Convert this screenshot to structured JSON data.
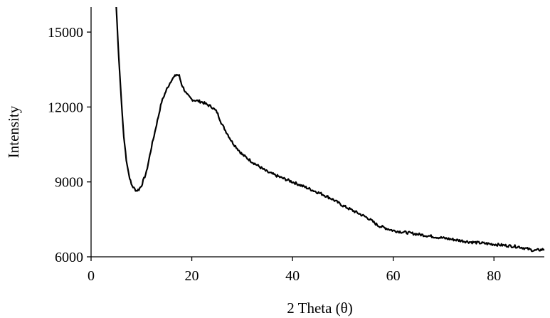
{
  "chart_data": {
    "type": "line",
    "title": "",
    "xlabel": "2 Theta (θ)",
    "ylabel": "Intensity",
    "xlim": [
      0,
      90
    ],
    "ylim": [
      6000,
      16000
    ],
    "x_ticks": [
      0,
      20,
      40,
      60,
      80
    ],
    "y_ticks": [
      6000,
      9000,
      12000,
      15000
    ],
    "grid": false,
    "legend": "none",
    "line_color": "#000000",
    "series": [
      {
        "x": [
          5.0,
          5.5,
          6.0,
          6.5,
          7.0,
          7.5,
          8.0,
          8.5,
          9.0,
          9.5,
          10.0,
          11.0,
          12.0,
          13.0,
          14.0,
          15.0,
          16.0,
          17.0,
          17.5,
          18.0,
          19.0,
          20.0,
          22.0,
          24.0,
          25.0,
          26.0,
          28.0,
          30.0,
          32.0,
          35.0,
          38.0,
          40.0,
          43.0,
          46.0,
          48.0,
          50.0,
          52.0,
          55.0,
          57.0,
          60.0,
          65.0,
          70.0,
          75.0,
          80.0,
          85.0,
          88.0,
          90.0
        ],
        "y": [
          16000,
          14000,
          12300,
          10800,
          9900,
          9300,
          8900,
          8750,
          8650,
          8700,
          8850,
          9400,
          10400,
          11300,
          12200,
          12700,
          13100,
          13300,
          13250,
          12900,
          12500,
          12300,
          12200,
          12000,
          11800,
          11300,
          10600,
          10100,
          9800,
          9400,
          9150,
          9000,
          8750,
          8500,
          8300,
          8050,
          7850,
          7550,
          7250,
          7050,
          6900,
          6750,
          6600,
          6500,
          6400,
          6250,
          6300
        ]
      }
    ]
  }
}
